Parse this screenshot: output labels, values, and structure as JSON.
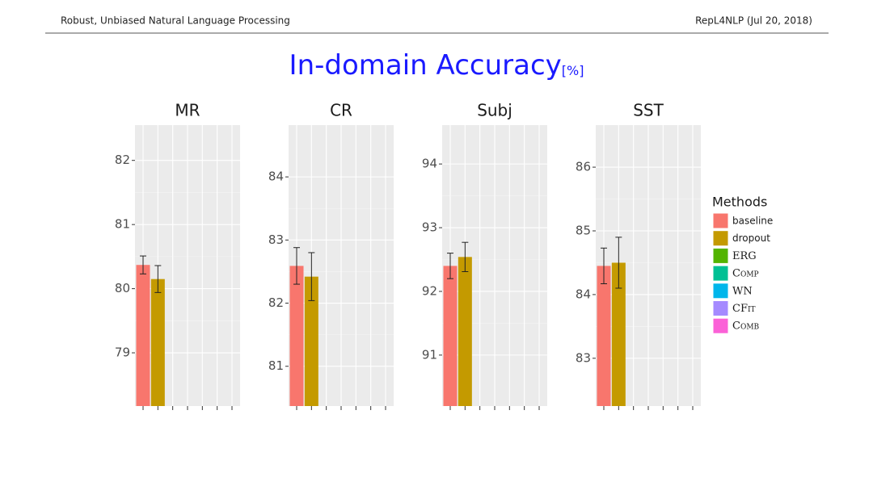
{
  "header": {
    "left": "Robust, Unbiased Natural Language Processing",
    "right": "RepL4NLP (Jul 20, 2018)"
  },
  "title": "In-domain Accuracy",
  "title_unit": "[%]",
  "legend": {
    "title": "Methods",
    "items": [
      {
        "name": "baseline",
        "color": "#f8766d"
      },
      {
        "name": "dropout",
        "color": "#c49a00"
      },
      {
        "name": "ERG",
        "color": "#53b400"
      },
      {
        "name": "Comp",
        "color": "#00c094"
      },
      {
        "name": "WN",
        "color": "#00b6eb"
      },
      {
        "name": "CFit",
        "color": "#a58aff"
      },
      {
        "name": "Comb",
        "color": "#fb61d7"
      }
    ]
  },
  "chart_data": [
    {
      "type": "bar",
      "title": "MR",
      "values": [
        80.37,
        80.15,
        null,
        null,
        null,
        null,
        null
      ],
      "errors": [
        0.14,
        0.21,
        null,
        null,
        null,
        null,
        null
      ],
      "ylim": [
        78.17,
        82.55
      ],
      "yticks": [
        79,
        80,
        81,
        82
      ]
    },
    {
      "type": "bar",
      "title": "CR",
      "values": [
        82.59,
        82.42,
        null,
        null,
        null,
        null,
        null
      ],
      "errors": [
        0.29,
        0.38,
        null,
        null,
        null,
        null,
        null
      ],
      "ylim": [
        80.37,
        84.82
      ],
      "yticks": [
        81,
        82,
        83,
        84
      ]
    },
    {
      "type": "bar",
      "title": "Subj",
      "values": [
        92.4,
        92.54,
        null,
        null,
        null,
        null,
        null
      ],
      "errors": [
        0.2,
        0.23,
        null,
        null,
        null,
        null,
        null
      ],
      "ylim": [
        90.2,
        94.61
      ],
      "yticks": [
        91,
        92,
        93,
        94
      ]
    },
    {
      "type": "bar",
      "title": "SST",
      "values": [
        84.45,
        84.5,
        null,
        null,
        null,
        null,
        null
      ],
      "errors": [
        0.28,
        0.4,
        null,
        null,
        null,
        null,
        null
      ],
      "ylim": [
        82.25,
        86.66
      ],
      "yticks": [
        83,
        84,
        85,
        86
      ]
    }
  ]
}
